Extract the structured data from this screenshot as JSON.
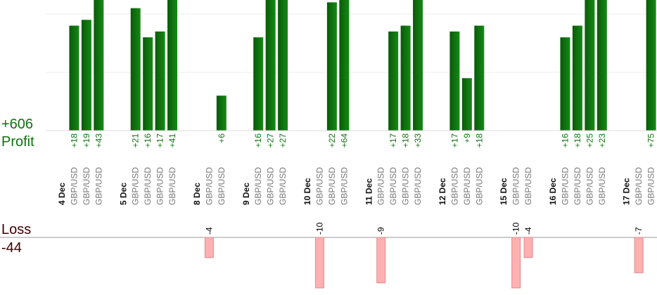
{
  "chart_data": {
    "type": "bar",
    "profit_total": "+606",
    "profit_label": "Profit",
    "loss_total": "-44",
    "loss_label": "Loss",
    "profit_color": "#0b6a0b",
    "loss_color": "#ffb0b0",
    "profit_ylim": [
      0,
      22.4
    ],
    "profit_gridlines": [
      10,
      20
    ],
    "loss_ylim": [
      -11.4,
      0
    ],
    "days": [
      {
        "date": "4 Dec",
        "pairs": [
          "GBP/USD",
          "GBP/USD",
          "GBP/USD"
        ],
        "values": [
          18,
          19,
          43
        ],
        "value_labels": [
          "+18",
          "+19",
          "+43"
        ]
      },
      {
        "date": "5 Dec",
        "pairs": [
          "GBP/USD",
          "GBP/USD",
          "GBP/USD",
          "GBP/USD"
        ],
        "values": [
          21,
          16,
          17,
          41
        ],
        "value_labels": [
          "+21",
          "+16",
          "+17",
          "+41"
        ]
      },
      {
        "date": "8 Dec",
        "pairs": [
          "GBP/USD",
          "GBP/USD"
        ],
        "values": [
          -4,
          6
        ],
        "value_labels": [
          "-4",
          "+6"
        ]
      },
      {
        "date": "9 Dec",
        "pairs": [
          "GBP/USD",
          "GBP/USD",
          "GBP/USD"
        ],
        "values": [
          16,
          27,
          27
        ],
        "value_labels": [
          "+16",
          "+27",
          "+27"
        ]
      },
      {
        "date": "10 Dec",
        "pairs": [
          "GBP/USD",
          "GBP/USD",
          "GBP/USD"
        ],
        "values": [
          -10,
          22,
          64
        ],
        "value_labels": [
          "-10",
          "+22",
          "+64"
        ]
      },
      {
        "date": "11 Dec",
        "pairs": [
          "GBP/USD",
          "GBP/USD",
          "GBP/USD",
          "GBP/USD"
        ],
        "values": [
          -9,
          17,
          18,
          33
        ],
        "value_labels": [
          "-9",
          "+17",
          "+18",
          "+33"
        ]
      },
      {
        "date": "12 Dec",
        "pairs": [
          "GBP/USD",
          "GBP/USD",
          "GBP/USD"
        ],
        "values": [
          17,
          9,
          18
        ],
        "value_labels": [
          "+17",
          "+9",
          "+18"
        ]
      },
      {
        "date": "15 Dec",
        "pairs": [
          "GBP/USD",
          "GBP/USD"
        ],
        "values": [
          -10,
          -4
        ],
        "value_labels": [
          "-10",
          "-4"
        ]
      },
      {
        "date": "16 Dec",
        "pairs": [
          "GBP/USD",
          "GBP/USD",
          "GBP/USD",
          "GBP/USD"
        ],
        "values": [
          16,
          18,
          25,
          23
        ],
        "value_labels": [
          "+16",
          "+18",
          "+25",
          "+23"
        ]
      },
      {
        "date": "17 Dec",
        "pairs": [
          "GBP/USD",
          "GBP/USD"
        ],
        "values": [
          -7,
          75
        ],
        "value_labels": [
          "-7",
          "+75"
        ]
      }
    ]
  }
}
